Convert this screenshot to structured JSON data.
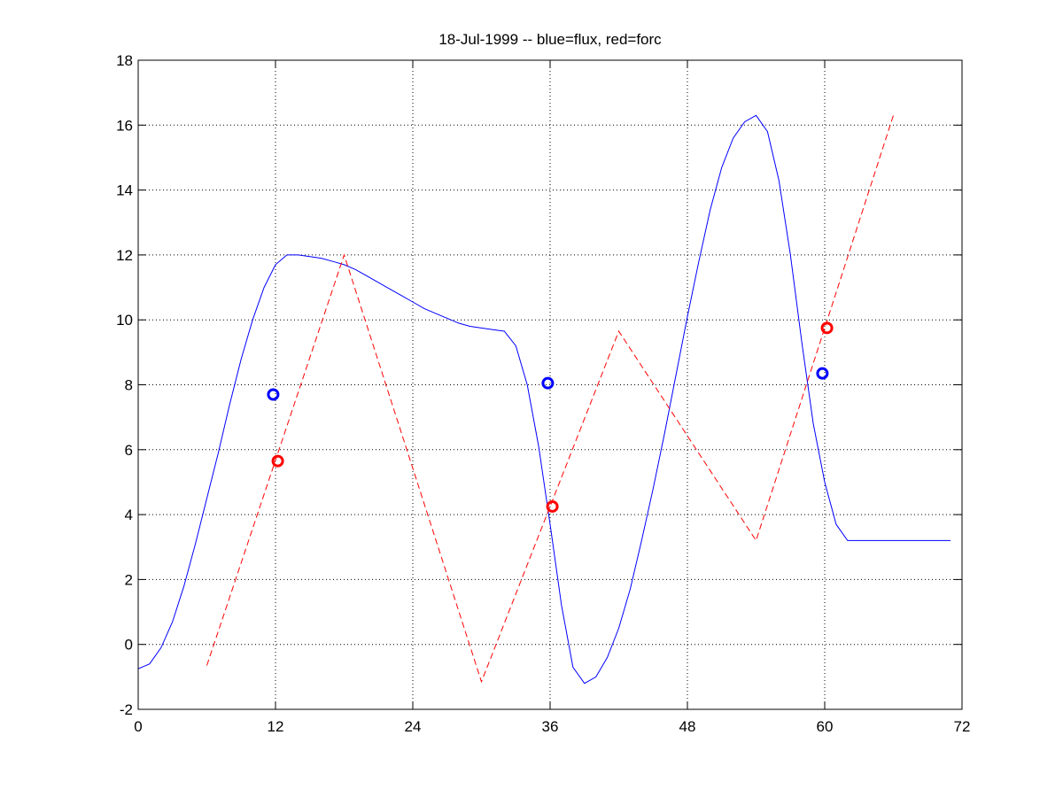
{
  "chart_data": {
    "type": "line",
    "title": "18-Jul-1999 -- blue=flux, red=forc",
    "xlabel": "",
    "ylabel": "",
    "xlim": [
      0,
      72
    ],
    "ylim": [
      -2,
      18
    ],
    "xticks": [
      0,
      12,
      24,
      36,
      48,
      60,
      72
    ],
    "yticks": [
      -2,
      0,
      2,
      4,
      6,
      8,
      10,
      12,
      14,
      16,
      18
    ],
    "grid": true,
    "series": [
      {
        "color": "#0000ff",
        "style": "solid",
        "x": [
          0,
          1,
          2,
          3,
          4,
          5,
          6,
          7,
          8,
          9,
          10,
          11,
          12,
          13,
          14,
          15,
          16,
          17,
          18,
          19,
          20,
          21,
          22,
          23,
          24,
          25,
          26,
          27,
          28,
          29,
          30,
          31,
          32,
          33,
          34,
          35,
          36,
          37,
          38,
          39,
          40,
          41,
          42,
          43,
          44,
          45,
          46,
          47,
          48,
          49,
          50,
          51,
          52,
          53,
          54,
          55,
          56,
          57,
          58,
          59,
          60,
          61,
          62,
          63,
          64,
          65,
          66,
          67,
          68,
          69,
          70,
          71
        ],
        "y": [
          -0.75,
          -0.6,
          -0.1,
          0.7,
          1.8,
          3.1,
          4.5,
          5.9,
          7.4,
          8.8,
          10.0,
          11.0,
          11.7,
          12.0,
          12.0,
          11.95,
          11.9,
          11.8,
          11.7,
          11.55,
          11.35,
          11.15,
          10.95,
          10.75,
          10.55,
          10.35,
          10.2,
          10.05,
          9.9,
          9.8,
          9.75,
          9.7,
          9.65,
          9.2,
          8.0,
          6.1,
          3.7,
          1.2,
          -0.7,
          -1.2,
          -1.0,
          -0.4,
          0.5,
          1.7,
          3.2,
          4.8,
          6.5,
          8.3,
          10.1,
          11.8,
          13.4,
          14.7,
          15.6,
          16.1,
          16.3,
          15.8,
          14.3,
          12.0,
          9.3,
          6.8,
          5.0,
          3.7,
          3.2,
          3.2,
          3.2,
          3.2,
          3.2,
          3.2,
          3.2,
          3.2,
          3.2,
          3.2
        ]
      },
      {
        "color": "#ff0000",
        "style": "dashed",
        "x": [
          6,
          18,
          30,
          42,
          54,
          66
        ],
        "y": [
          -0.65,
          12.0,
          -1.15,
          9.65,
          3.2,
          16.3
        ]
      }
    ],
    "markers": [
      {
        "x": 11.8,
        "y": 7.7,
        "color": "#0000ff"
      },
      {
        "x": 35.8,
        "y": 8.05,
        "color": "#0000ff"
      },
      {
        "x": 59.8,
        "y": 8.35,
        "color": "#0000ff"
      },
      {
        "x": 12.2,
        "y": 5.65,
        "color": "#ff0000"
      },
      {
        "x": 36.2,
        "y": 4.25,
        "color": "#ff0000"
      },
      {
        "x": 60.2,
        "y": 9.75,
        "color": "#ff0000"
      }
    ]
  }
}
